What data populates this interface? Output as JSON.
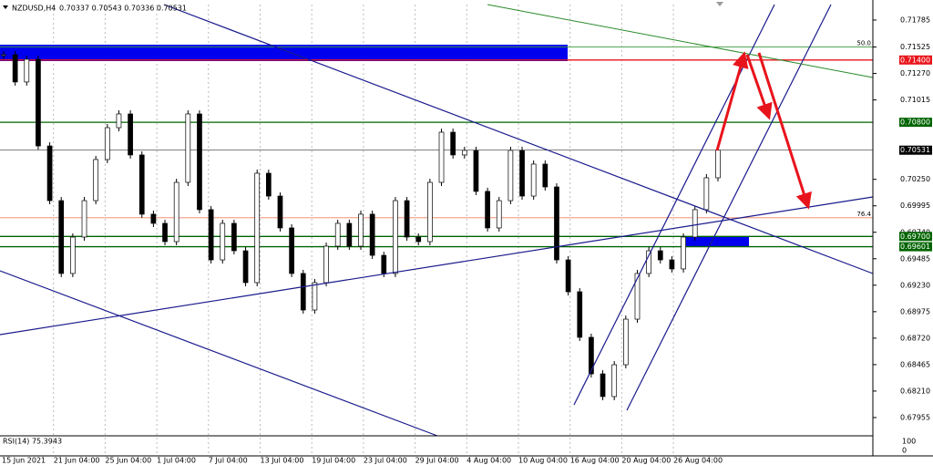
{
  "header": {
    "symbol": "NZDUSD,H4",
    "ohlc": "0.70337 0.70543 0.70336 0.70531"
  },
  "chart_data": {
    "type": "candlestick",
    "closes": [
      0.71451,
      0.71188,
      0.71407,
      0.70572,
      0.70045,
      0.69343,
      0.69694,
      0.70045,
      0.70441,
      0.70748,
      0.7088,
      0.70485,
      0.69914,
      0.69826,
      0.6965,
      0.70221,
      0.7088,
      0.69958,
      0.69474,
      0.69826,
      0.69562,
      0.69255,
      0.70309,
      0.70089,
      0.69782,
      0.69343,
      0.68991,
      0.69255,
      0.69606,
      0.69826,
      0.69606,
      0.69914,
      0.69518,
      0.69343,
      0.70045,
      0.69694,
      0.6965,
      0.70221,
      0.70704,
      0.70485,
      0.70529,
      0.70134,
      0.69782,
      0.70045,
      0.70529,
      0.70089,
      0.70397,
      0.70177,
      0.69474,
      0.69167,
      0.68728,
      0.68376,
      0.68157,
      0.68464,
      0.68903,
      0.69343,
      0.69562,
      0.69474,
      0.69387,
      0.69694,
      0.69958,
      0.70265,
      0.70531
    ],
    "ylim": [
      0.67779,
      0.71934
    ],
    "yticks": [
      {
        "value": 0.71785,
        "label": "0.71785"
      },
      {
        "value": 0.71525,
        "label": "0.71525"
      },
      {
        "value": 0.7127,
        "label": "0.71270"
      },
      {
        "value": 0.71015,
        "label": "0.71015"
      },
      {
        "value": 0.7025,
        "label": "0.70250"
      },
      {
        "value": 0.69995,
        "label": "0.69995"
      },
      {
        "value": 0.6974,
        "label": "0.69740"
      },
      {
        "value": 0.69485,
        "label": "0.69485"
      },
      {
        "value": 0.6923,
        "label": "0.69230"
      },
      {
        "value": 0.68975,
        "label": "0.68975"
      },
      {
        "value": 0.6872,
        "label": "0.68720"
      },
      {
        "value": 0.68465,
        "label": "0.68465"
      },
      {
        "value": 0.6821,
        "label": "0.68210"
      },
      {
        "value": 0.67955,
        "label": "0.67955"
      }
    ],
    "levels": [
      {
        "value": 0.714,
        "label": "0.71400",
        "color": "#e8141b"
      },
      {
        "value": 0.708,
        "label": "0.70800",
        "color": "#006400"
      },
      {
        "value": 0.70531,
        "label": "0.70531",
        "color": "#000000"
      },
      {
        "value": 0.697,
        "label": "0.69700",
        "color": "#006400"
      },
      {
        "value": 0.69601,
        "label": "0.69601",
        "color": "#006400"
      }
    ],
    "fib_levels": [
      {
        "value": 0.71525,
        "label": "50.0",
        "color": "#3c9a3c"
      },
      {
        "value": 0.6988,
        "label": "76.4",
        "color": "#f08060"
      }
    ],
    "time_labels": [
      "15 Jun 2021",
      "21 Jun 04:00",
      "25 Jun 04:00",
      "1 Jul 04:00",
      "7 Jul 04:00",
      "13 Jul 04:00",
      "19 Jul 04:00",
      "23 Jul 04:00",
      "29 Jul 04:00",
      "4 Aug 04:00",
      "10 Aug 04:00",
      "16 Aug 04:00",
      "20 Aug 04:00",
      "26 Aug 04:00"
    ],
    "rsi": {
      "label": "RSI(14) 75.3943",
      "axis": [
        "100",
        "0"
      ]
    }
  }
}
